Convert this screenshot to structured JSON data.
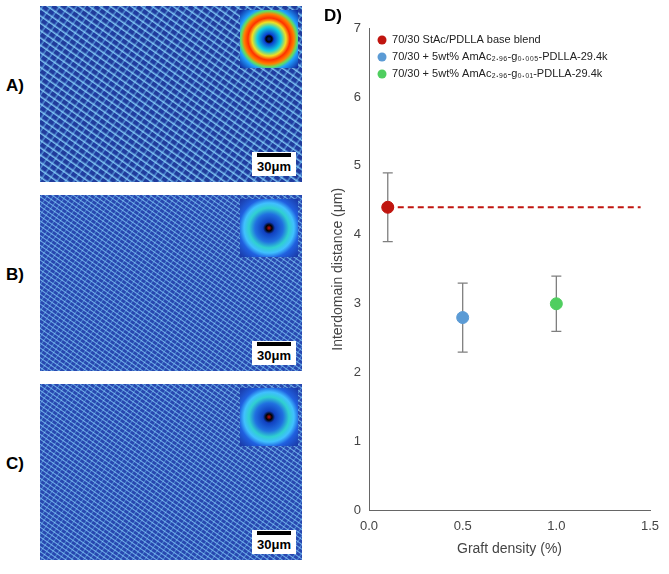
{
  "panels": [
    {
      "label": "A)",
      "scale_bar": "30μm"
    },
    {
      "label": "B)",
      "scale_bar": "30μm"
    },
    {
      "label": "C)",
      "scale_bar": "30μm"
    }
  ],
  "chart_data": {
    "type": "scatter",
    "panel_label": "D)",
    "x_label": "Graft density (%)",
    "y_label": "Interdomain distance (μm)",
    "xlim": [
      0,
      1.5
    ],
    "xticks": [
      {
        "value": 0,
        "label": "0.0"
      },
      0.5,
      {
        "value": 1,
        "label": "1.0"
      },
      1.5
    ],
    "ylim": [
      0,
      7
    ],
    "yticks": [
      0,
      1,
      2,
      3,
      4,
      5,
      6,
      7
    ],
    "grid": false,
    "legend": "upper left",
    "marker": "circle",
    "series": [
      {
        "name": "70/30 StAc/PDLLA base blend",
        "color": "#c0150f",
        "x": [
          0.1
        ],
        "values": [
          4.4
        ],
        "errors": [
          0.5
        ]
      },
      {
        "name": "70/30 + 5wt% AmAc₂.₉₆-g₀.₀₀₅-PDLLA-29.4k",
        "color": "#5b9bd5",
        "x": [
          0.5
        ],
        "values": [
          2.8
        ],
        "errors": [
          0.5
        ]
      },
      {
        "name": "70/30 + 5wt% AmAc₂.₉₆-g₀.₀₁-PDLLA-29.4k",
        "color": "#4fce5f",
        "x": [
          1.0
        ],
        "values": [
          3.0
        ],
        "errors": [
          0.4
        ]
      }
    ],
    "reference_line": {
      "y": 4.4,
      "x": [
        0.1,
        1.45
      ],
      "color": "#c0150f",
      "line_style": "dashed"
    }
  }
}
